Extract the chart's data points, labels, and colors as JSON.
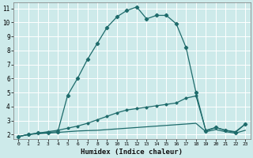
{
  "xlabel": "Humidex (Indice chaleur)",
  "bg_color": "#cdeaea",
  "grid_color": "#ffffff",
  "line_color": "#1e6b6b",
  "xlim": [
    -0.5,
    23.5
  ],
  "ylim": [
    1.7,
    11.4
  ],
  "xticks": [
    0,
    1,
    2,
    3,
    4,
    5,
    6,
    7,
    8,
    9,
    10,
    11,
    12,
    13,
    14,
    15,
    16,
    17,
    18,
    19,
    20,
    21,
    22,
    23
  ],
  "yticks": [
    2,
    3,
    4,
    5,
    6,
    7,
    8,
    9,
    10,
    11
  ],
  "curve_main_x": [
    0,
    1,
    2,
    3,
    4,
    5,
    6,
    7,
    8,
    9,
    10,
    11,
    12,
    13,
    14,
    15,
    16,
    17,
    18,
    19,
    20,
    21,
    22,
    23
  ],
  "curve_main_y": [
    1.85,
    2.0,
    2.1,
    2.15,
    2.2,
    4.8,
    6.0,
    7.35,
    8.5,
    9.65,
    10.4,
    10.85,
    11.1,
    10.25,
    10.5,
    10.5,
    9.9,
    8.2,
    5.0,
    2.25,
    2.5,
    2.3,
    2.15,
    2.75
  ],
  "curve_mid_x": [
    0,
    1,
    2,
    3,
    4,
    5,
    6,
    7,
    8,
    9,
    10,
    11,
    12,
    13,
    14,
    15,
    16,
    17,
    18,
    19,
    20,
    21,
    22,
    23
  ],
  "curve_mid_y": [
    1.85,
    2.0,
    2.1,
    2.2,
    2.3,
    2.45,
    2.6,
    2.8,
    3.05,
    3.3,
    3.55,
    3.75,
    3.85,
    3.95,
    4.05,
    4.15,
    4.25,
    4.6,
    4.75,
    2.3,
    2.5,
    2.3,
    2.2,
    2.75
  ],
  "curve_low_x": [
    0,
    1,
    2,
    3,
    4,
    5,
    6,
    7,
    8,
    9,
    10,
    11,
    12,
    13,
    14,
    15,
    16,
    17,
    18,
    19,
    20,
    21,
    22,
    23
  ],
  "curve_low_y": [
    1.85,
    2.0,
    2.05,
    2.1,
    2.15,
    2.2,
    2.25,
    2.28,
    2.3,
    2.35,
    2.4,
    2.45,
    2.5,
    2.55,
    2.6,
    2.65,
    2.7,
    2.75,
    2.8,
    2.2,
    2.35,
    2.2,
    2.1,
    2.3
  ]
}
